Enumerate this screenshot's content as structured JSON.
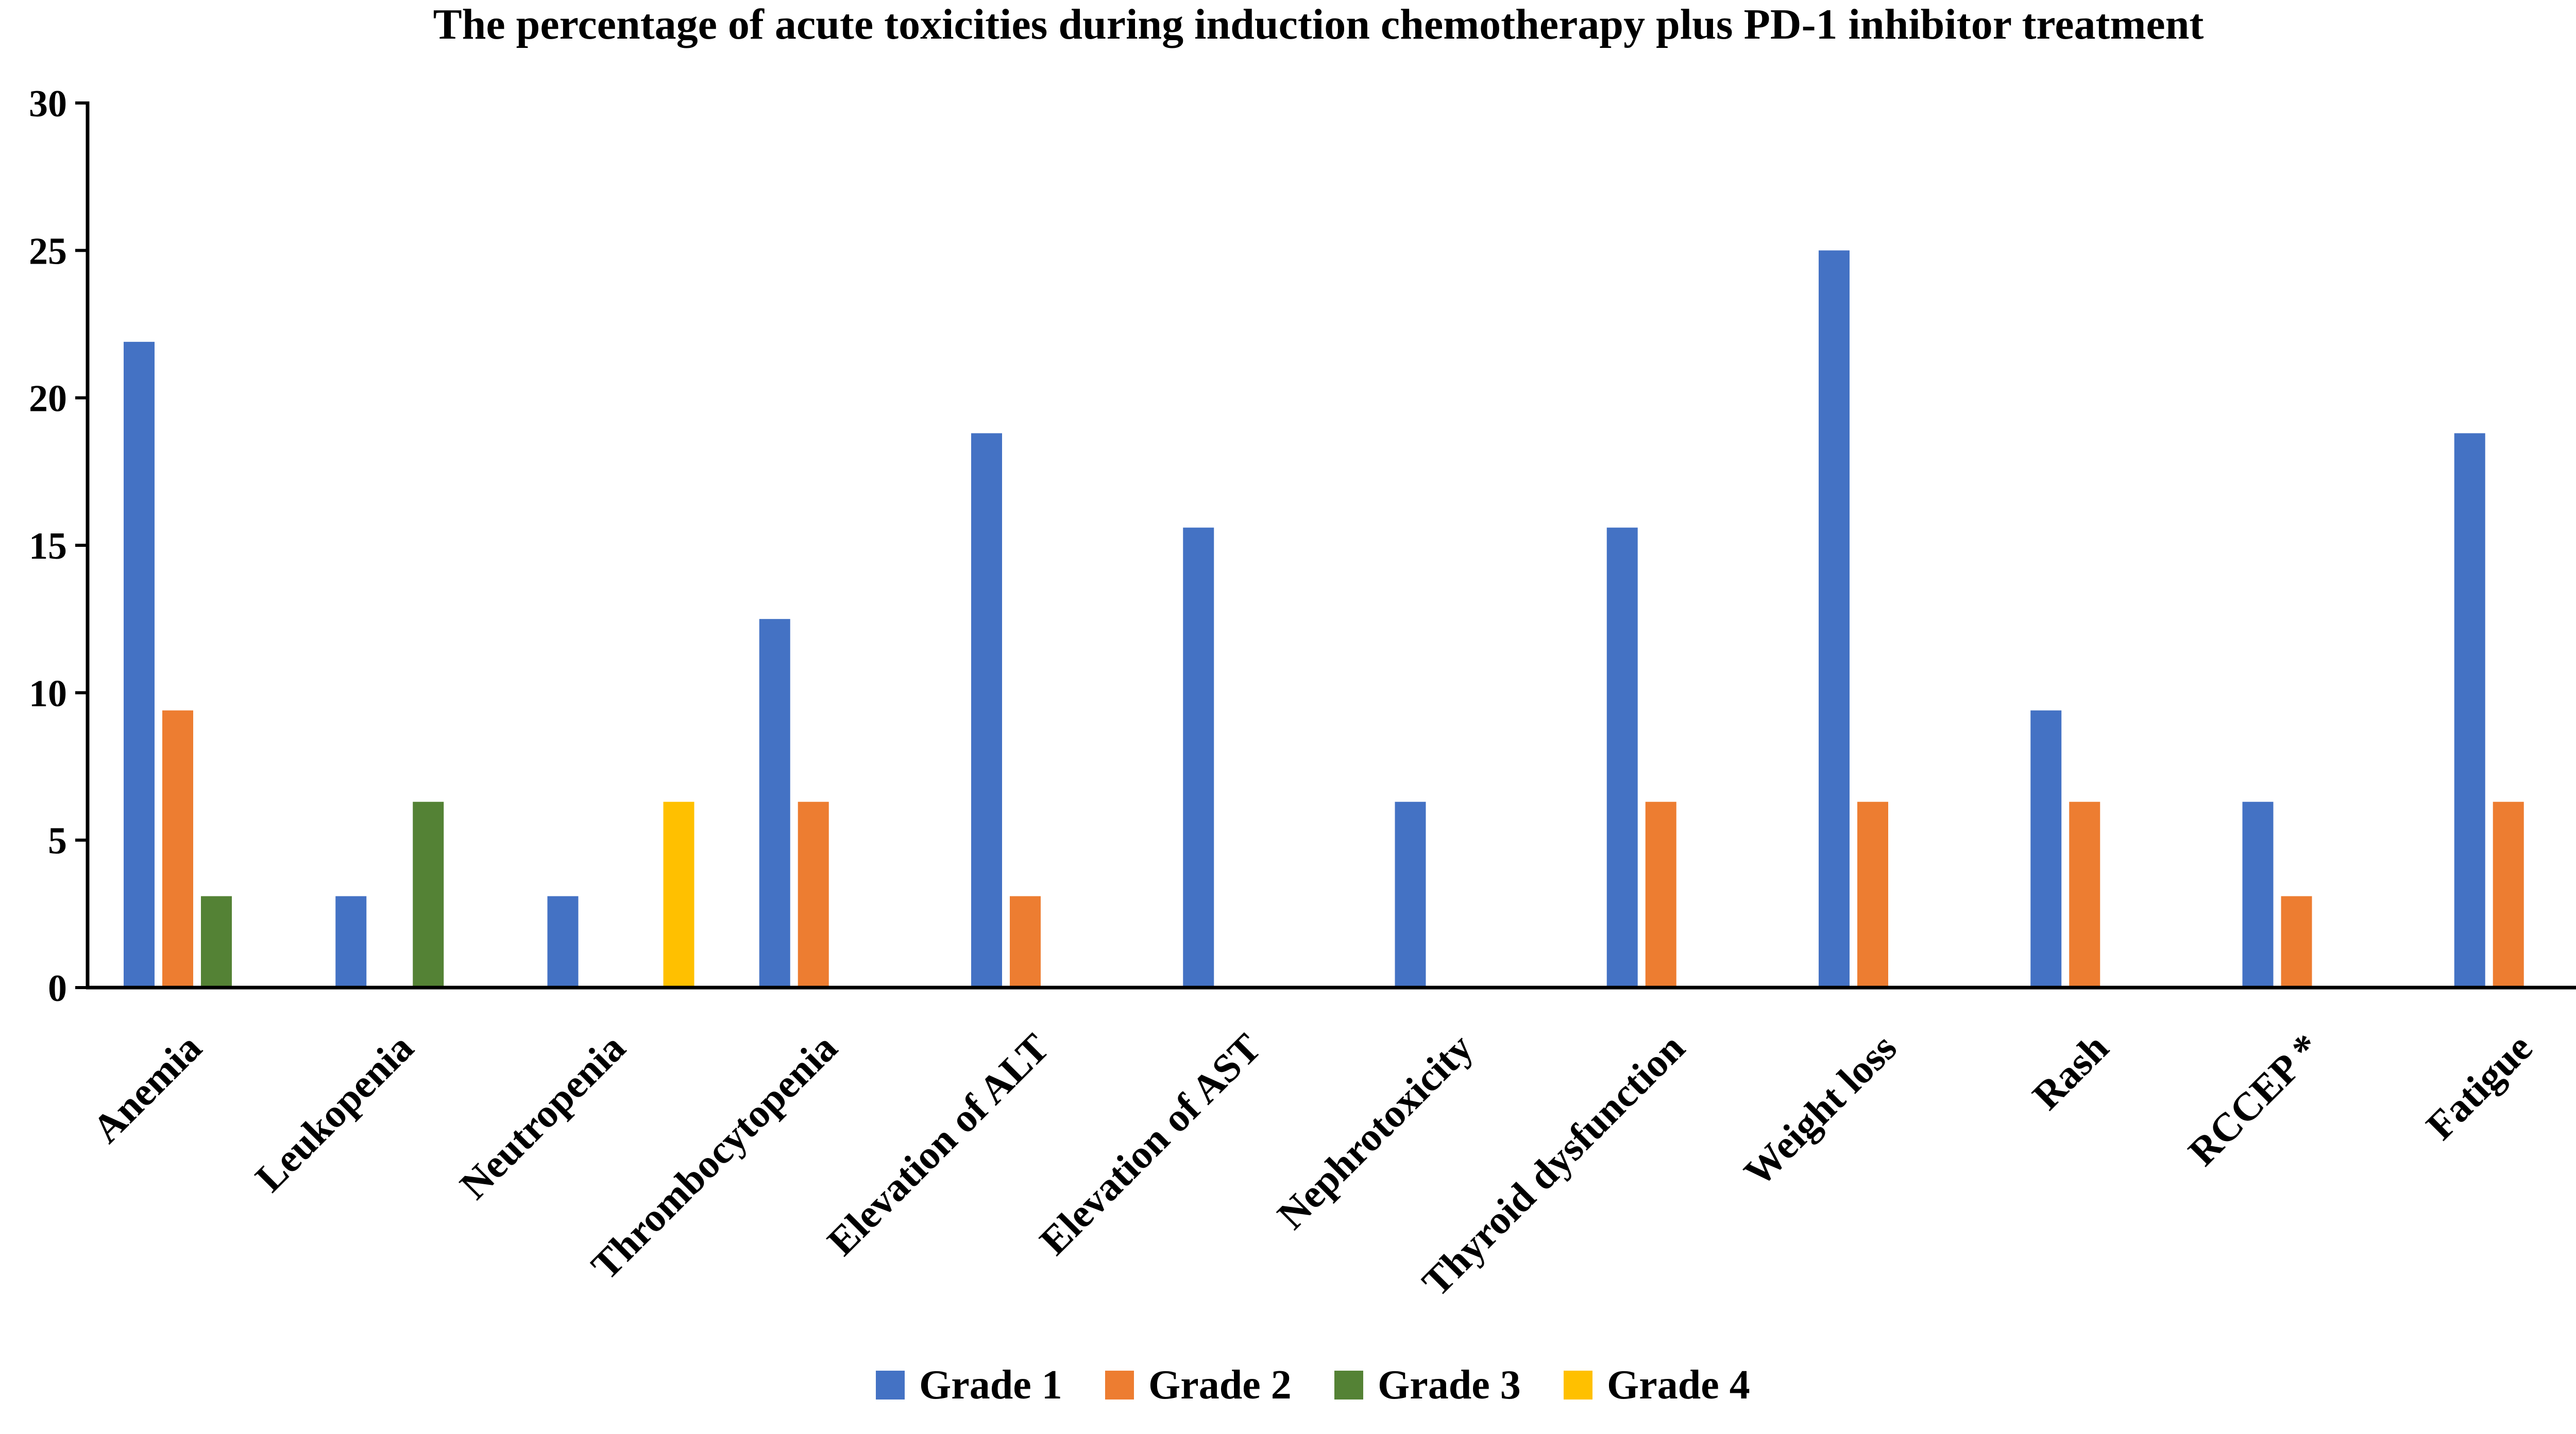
{
  "chart_data": {
    "type": "bar",
    "title": "The percentage of acute toxicities during induction chemotherapy plus PD-1 inhibitor treatment",
    "xlabel": "",
    "ylabel": "",
    "ylim": [
      0,
      30
    ],
    "yticks": [
      0,
      5,
      10,
      15,
      20,
      25,
      30
    ],
    "grid": false,
    "legend_position": "bottom-center",
    "categories": [
      "Anemia",
      "Leukopenia",
      "Neutropenia",
      "Thrombocytopenia",
      "Elevation of ALT",
      "Elevation of AST",
      "Nephrotoxicity",
      "Thyroid dysfunction",
      "Weight loss",
      "Rash",
      "RCCEP *",
      "Fatigue"
    ],
    "series": [
      {
        "name": "Grade 1",
        "color": "#4472C4",
        "values": [
          21.9,
          3.1,
          3.1,
          12.5,
          18.8,
          15.6,
          6.3,
          15.6,
          25.0,
          9.4,
          6.3,
          18.8
        ]
      },
      {
        "name": "Grade 2",
        "color": "#ED7D31",
        "values": [
          9.4,
          0,
          0,
          6.3,
          3.1,
          0,
          0,
          6.3,
          6.3,
          6.3,
          3.1,
          6.3
        ]
      },
      {
        "name": "Grade 3",
        "color": "#548235",
        "values": [
          3.1,
          6.3,
          0,
          0,
          0,
          0,
          0,
          0,
          0,
          0,
          0,
          0
        ]
      },
      {
        "name": "Grade 4",
        "color": "#FFC000",
        "values": [
          0,
          0,
          6.3,
          0,
          0,
          0,
          0,
          0,
          0,
          0,
          0,
          0
        ]
      }
    ]
  }
}
